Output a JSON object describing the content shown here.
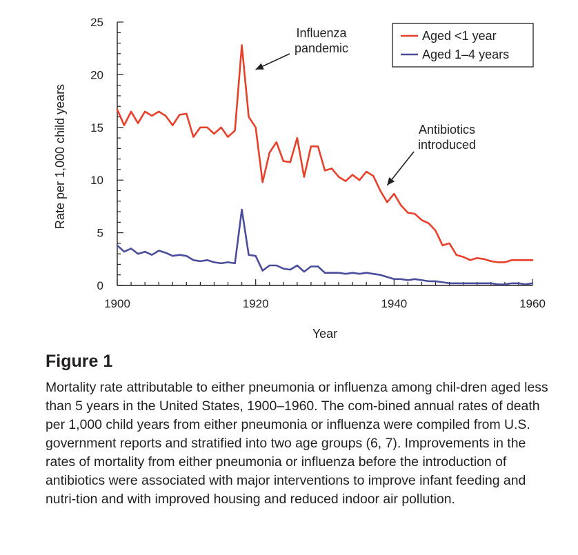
{
  "chart_data": {
    "type": "line",
    "xlabel": "Year",
    "ylabel": "Rate per 1,000 child years",
    "xlim": [
      1900,
      1960
    ],
    "ylim": [
      0,
      25
    ],
    "x_ticks": [
      1900,
      1920,
      1940,
      1960
    ],
    "y_ticks": [
      0,
      5,
      10,
      15,
      20,
      25
    ],
    "legend_position": "top-right",
    "series": [
      {
        "name": "Aged <1 year",
        "color": "#e8402a",
        "points": [
          [
            1900,
            16.7
          ],
          [
            1901,
            15.2
          ],
          [
            1902,
            16.5
          ],
          [
            1903,
            15.4
          ],
          [
            1904,
            16.5
          ],
          [
            1905,
            16.1
          ],
          [
            1906,
            16.5
          ],
          [
            1907,
            16.1
          ],
          [
            1908,
            15.2
          ],
          [
            1909,
            16.2
          ],
          [
            1910,
            16.3
          ],
          [
            1911,
            14.1
          ],
          [
            1912,
            15.0
          ],
          [
            1913,
            15.0
          ],
          [
            1914,
            14.4
          ],
          [
            1915,
            15.0
          ],
          [
            1916,
            14.1
          ],
          [
            1917,
            14.7
          ],
          [
            1918,
            22.8
          ],
          [
            1919,
            16.0
          ],
          [
            1920,
            15.0
          ],
          [
            1921,
            9.8
          ],
          [
            1922,
            12.6
          ],
          [
            1923,
            13.6
          ],
          [
            1924,
            11.8
          ],
          [
            1925,
            11.7
          ],
          [
            1926,
            14.0
          ],
          [
            1927,
            10.3
          ],
          [
            1928,
            13.2
          ],
          [
            1929,
            13.2
          ],
          [
            1930,
            10.9
          ],
          [
            1931,
            11.1
          ],
          [
            1932,
            10.3
          ],
          [
            1933,
            9.9
          ],
          [
            1934,
            10.5
          ],
          [
            1935,
            10.0
          ],
          [
            1936,
            10.8
          ],
          [
            1937,
            10.4
          ],
          [
            1938,
            9.0
          ],
          [
            1939,
            7.9
          ],
          [
            1940,
            8.7
          ],
          [
            1941,
            7.6
          ],
          [
            1942,
            6.9
          ],
          [
            1943,
            6.8
          ],
          [
            1944,
            6.2
          ],
          [
            1945,
            5.9
          ],
          [
            1946,
            5.2
          ],
          [
            1947,
            3.8
          ],
          [
            1948,
            4.0
          ],
          [
            1949,
            2.9
          ],
          [
            1950,
            2.7
          ],
          [
            1951,
            2.4
          ],
          [
            1952,
            2.6
          ],
          [
            1953,
            2.5
          ],
          [
            1954,
            2.3
          ],
          [
            1955,
            2.2
          ],
          [
            1956,
            2.2
          ],
          [
            1957,
            2.4
          ],
          [
            1958,
            2.4
          ],
          [
            1959,
            2.4
          ],
          [
            1960,
            2.4
          ]
        ]
      },
      {
        "name": "Aged 1–4 years",
        "color": "#4a4d9c",
        "points": [
          [
            1900,
            3.8
          ],
          [
            1901,
            3.2
          ],
          [
            1902,
            3.5
          ],
          [
            1903,
            3.0
          ],
          [
            1904,
            3.2
          ],
          [
            1905,
            2.9
          ],
          [
            1906,
            3.3
          ],
          [
            1907,
            3.1
          ],
          [
            1908,
            2.8
          ],
          [
            1909,
            2.9
          ],
          [
            1910,
            2.8
          ],
          [
            1911,
            2.4
          ],
          [
            1912,
            2.3
          ],
          [
            1913,
            2.4
          ],
          [
            1914,
            2.2
          ],
          [
            1915,
            2.1
          ],
          [
            1916,
            2.2
          ],
          [
            1917,
            2.1
          ],
          [
            1918,
            7.2
          ],
          [
            1919,
            2.9
          ],
          [
            1920,
            2.8
          ],
          [
            1921,
            1.4
          ],
          [
            1922,
            1.9
          ],
          [
            1923,
            1.9
          ],
          [
            1924,
            1.6
          ],
          [
            1925,
            1.5
          ],
          [
            1926,
            1.9
          ],
          [
            1927,
            1.3
          ],
          [
            1928,
            1.8
          ],
          [
            1929,
            1.8
          ],
          [
            1930,
            1.2
          ],
          [
            1931,
            1.2
          ],
          [
            1932,
            1.2
          ],
          [
            1933,
            1.1
          ],
          [
            1934,
            1.2
          ],
          [
            1935,
            1.1
          ],
          [
            1936,
            1.2
          ],
          [
            1937,
            1.1
          ],
          [
            1938,
            1.0
          ],
          [
            1939,
            0.8
          ],
          [
            1940,
            0.6
          ],
          [
            1941,
            0.6
          ],
          [
            1942,
            0.5
          ],
          [
            1943,
            0.6
          ],
          [
            1944,
            0.5
          ],
          [
            1945,
            0.4
          ],
          [
            1946,
            0.4
          ],
          [
            1947,
            0.3
          ],
          [
            1948,
            0.2
          ],
          [
            1949,
            0.2
          ],
          [
            1950,
            0.2
          ],
          [
            1951,
            0.2
          ],
          [
            1952,
            0.2
          ],
          [
            1953,
            0.2
          ],
          [
            1954,
            0.2
          ],
          [
            1955,
            0.1
          ],
          [
            1956,
            0.1
          ],
          [
            1957,
            0.2
          ],
          [
            1958,
            0.2
          ],
          [
            1959,
            0.1
          ],
          [
            1960,
            0.2
          ]
        ]
      }
    ],
    "annotations": [
      {
        "lines": [
          "Influenza",
          "pandemic"
        ],
        "points_to": [
          1920,
          20.5
        ]
      },
      {
        "lines": [
          "Antibiotics",
          "introduced"
        ],
        "points_to": [
          1939,
          9.5
        ]
      }
    ]
  },
  "caption": {
    "heading": "Figure 1",
    "text": "Mortality rate attributable to either pneumonia or influenza among chil-dren aged less than 5 years in the United States, 1900–1960. The com-bined annual rates of death per 1,000 child years from either pneumonia or influenza were compiled from U.S. government reports and stratified into two age groups (6, 7). Improvements in the rates of mortality from either pneumonia or influenza before the introduction of antibiotics were associated with major interventions to improve infant feeding and nutri-tion and with improved housing and reduced indoor air pollution."
  },
  "colors": {
    "axis": "#231f20"
  }
}
